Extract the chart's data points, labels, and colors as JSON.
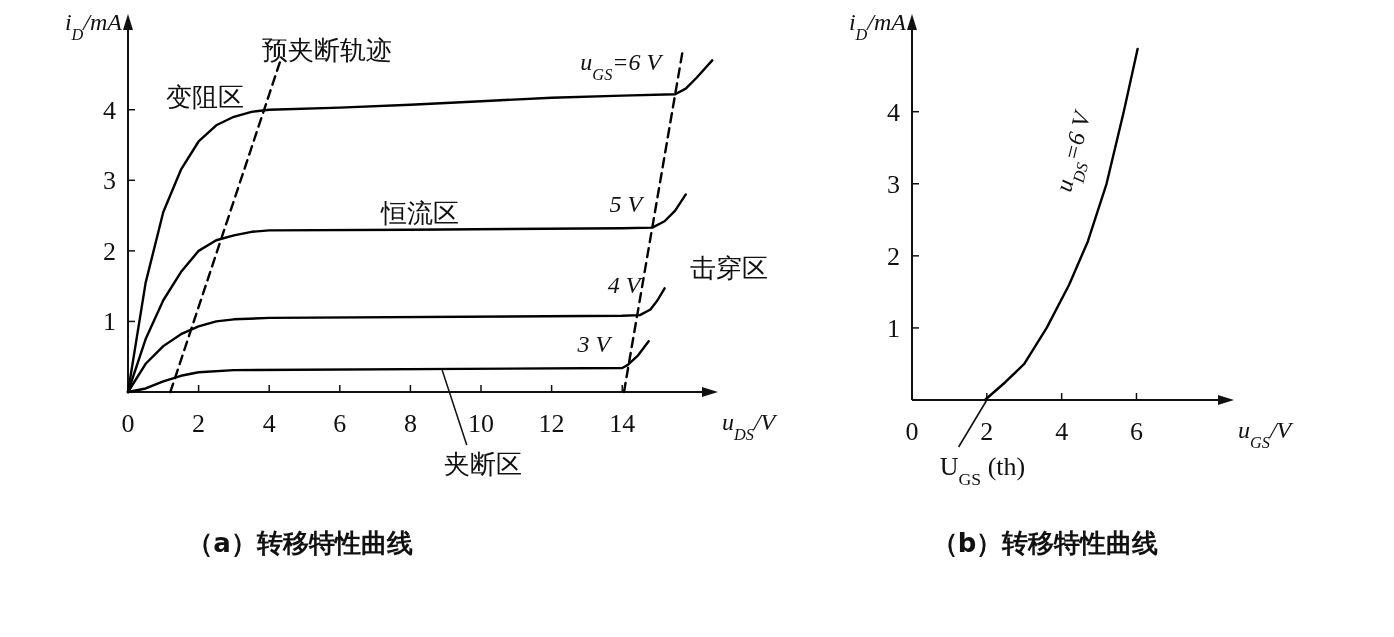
{
  "chart_data": [
    {
      "type": "line",
      "title": "（a）转移特性曲线",
      "xlabel": "u$_{DS}$/V",
      "ylabel": "i$_{D}$/mA",
      "xlim": [
        0,
        16.6
      ],
      "ylim": [
        0,
        5.3
      ],
      "xticks": [
        0,
        2,
        4,
        6,
        8,
        10,
        12,
        14
      ],
      "yticks": [
        1,
        2,
        3,
        4
      ],
      "series": [
        {
          "name": "u$_{GS}$=6 V",
          "color": "#000000",
          "x": [
            0,
            0.5,
            1,
            1.5,
            2,
            2.5,
            3,
            3.5,
            4,
            6,
            8,
            10,
            12,
            14,
            15.5,
            15.8,
            16.1,
            16.55
          ],
          "values": [
            0,
            1.55,
            2.55,
            3.15,
            3.55,
            3.78,
            3.9,
            3.97,
            4.0,
            4.03,
            4.07,
            4.12,
            4.17,
            4.2,
            4.22,
            4.3,
            4.45,
            4.7
          ]
        },
        {
          "name": "5 V",
          "color": "#000000",
          "x": [
            0,
            0.5,
            1,
            1.5,
            2,
            2.5,
            3,
            3.5,
            4,
            8,
            14,
            14.85,
            15.2,
            15.5,
            15.8
          ],
          "values": [
            0,
            0.75,
            1.3,
            1.7,
            2.0,
            2.15,
            2.22,
            2.27,
            2.29,
            2.3,
            2.32,
            2.33,
            2.42,
            2.57,
            2.8
          ]
        },
        {
          "name": "4 V",
          "color": "#000000",
          "x": [
            0,
            0.5,
            1,
            1.5,
            2,
            2.5,
            3,
            4,
            14,
            14.5,
            14.8,
            15,
            15.2
          ],
          "values": [
            0,
            0.4,
            0.65,
            0.82,
            0.93,
            1.0,
            1.03,
            1.05,
            1.08,
            1.09,
            1.17,
            1.3,
            1.47
          ]
        },
        {
          "name": "3 V",
          "color": "#000000",
          "x": [
            0,
            0.5,
            1,
            1.5,
            2,
            3,
            14,
            14.15,
            14.45,
            14.75
          ],
          "values": [
            0,
            0.05,
            0.15,
            0.23,
            0.28,
            0.31,
            0.34,
            0.38,
            0.52,
            0.72
          ]
        },
        {
          "color": "#000000",
          "line_style": "dashed",
          "x": [
            1.2,
            4.3
          ],
          "values": [
            0,
            4.67
          ]
        },
        {
          "color": "#000000",
          "line_style": "dashed",
          "x": [
            14.05,
            15.7
          ],
          "values": [
            0,
            4.8
          ]
        }
      ],
      "annotations": [
        {
          "text": "预夹断轨迹",
          "x": 4.3,
          "y": 4.67
        },
        "变阻区",
        "恒流区",
        "击穿区",
        {
          "text": "夹断区",
          "x": 8.9,
          "y": 0.31
        }
      ]
    },
    {
      "type": "line",
      "title": "（b）转移特性曲线",
      "xlabel": "u$_{GS}$/V",
      "ylabel": "i$_{D}$/mA",
      "xlim": [
        0,
        8.5
      ],
      "ylim": [
        0,
        5.3
      ],
      "xticks": [
        0,
        2,
        4,
        6
      ],
      "yticks": [
        1,
        2,
        3,
        4
      ],
      "series": [
        {
          "name": "u$_{DS}$=6 V",
          "color": "#000000",
          "x": [
            1.95,
            2.5,
            3,
            3.6,
            4.2,
            4.7,
            5.2,
            5.66,
            6.03
          ],
          "values": [
            0,
            0.25,
            0.5,
            1,
            1.6,
            2.2,
            3,
            4,
            4.87
          ]
        }
      ],
      "annotations": [
        {
          "text": "U$_{GS}$ (th)",
          "x": 2,
          "y": 0
        }
      ]
    }
  ]
}
